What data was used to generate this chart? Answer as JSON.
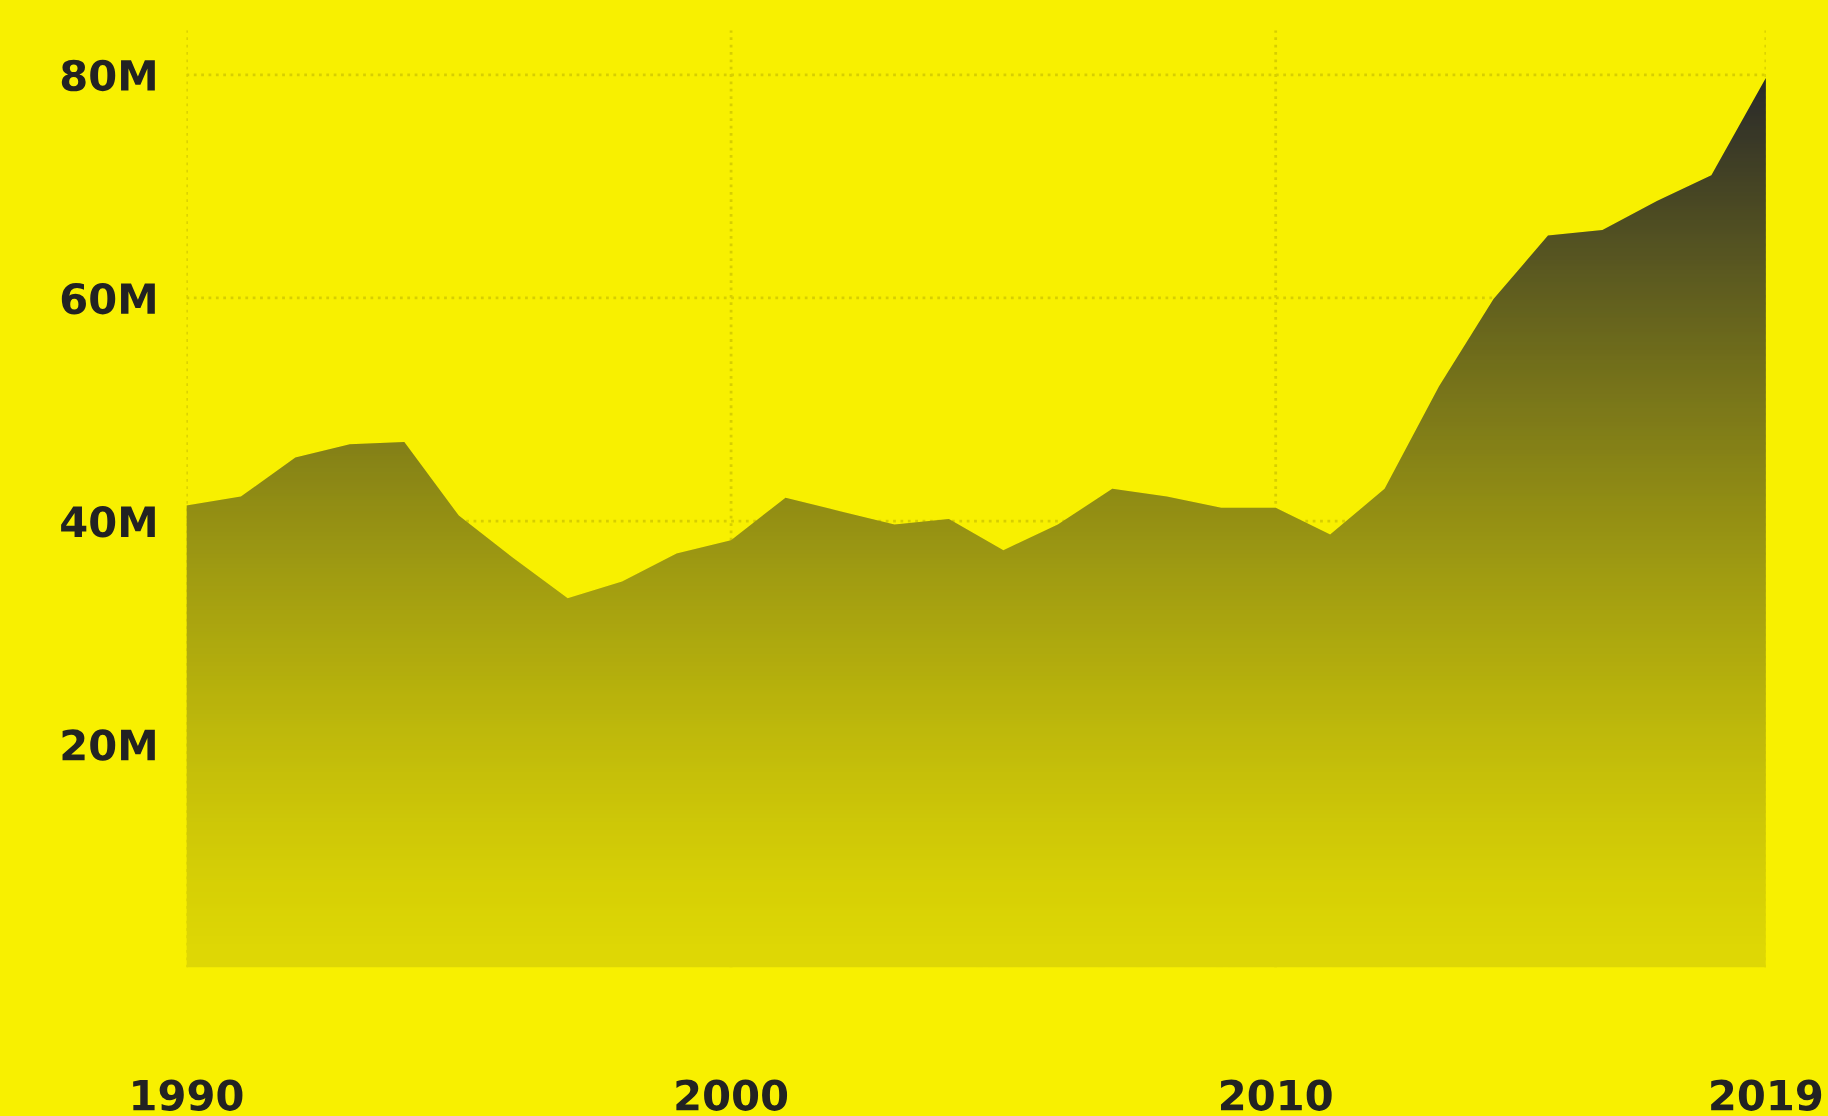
{
  "chart_data": {
    "type": "area",
    "x": [
      1990,
      1991,
      1992,
      1993,
      1994,
      1995,
      1996,
      1997,
      1998,
      1999,
      2000,
      2001,
      2002,
      2003,
      2004,
      2005,
      2006,
      2007,
      2008,
      2009,
      2010,
      2011,
      2012,
      2013,
      2014,
      2015,
      2016,
      2017,
      2018,
      2019
    ],
    "series": [
      {
        "color": "#2b2b2b",
        "values": [
          41.4,
          42.2,
          45.7,
          46.9,
          47.1,
          40.5,
          36.7,
          33.1,
          34.6,
          37.1,
          38.3,
          42.1,
          40.9,
          39.7,
          40.2,
          37.4,
          39.7,
          42.9,
          42.2,
          41.2,
          41.2,
          38.8,
          42.9,
          52.1,
          59.9,
          65.6,
          66.1,
          68.7,
          71.0,
          79.7
        ]
      }
    ],
    "xlim": [
      1990,
      2019
    ],
    "xticks": [
      1990,
      2000,
      2010,
      2019
    ],
    "ylim": [
      0,
      84
    ],
    "yticks": [
      {
        "value": 20,
        "label": "20M"
      },
      {
        "value": 40,
        "label": "40M"
      },
      {
        "value": 60,
        "label": "60M"
      },
      {
        "value": 80,
        "label": "80M"
      }
    ],
    "grid": true
  }
}
